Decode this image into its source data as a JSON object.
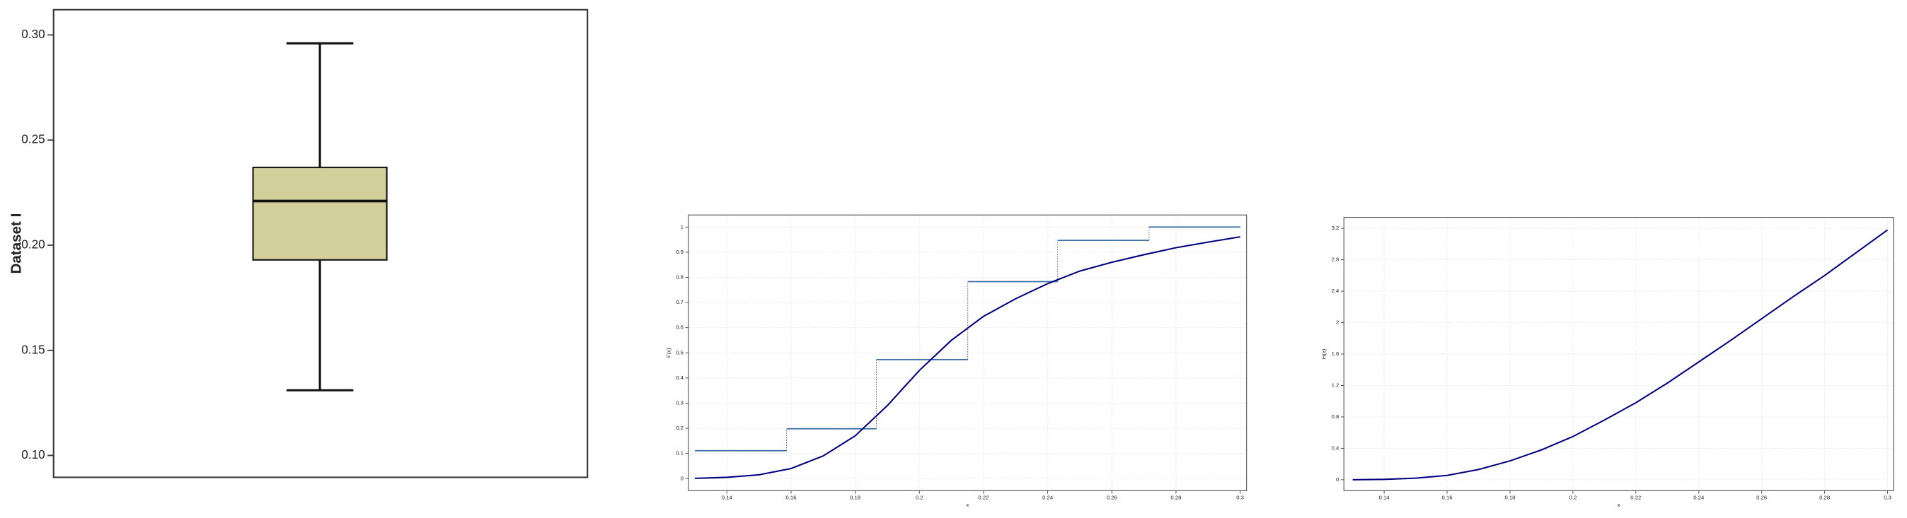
{
  "chart_data": [
    {
      "type": "box",
      "ylabel": "Dataset I",
      "color": "#d2cf9b",
      "whisker_low": 0.131,
      "q1": 0.193,
      "median": 0.221,
      "q3": 0.237,
      "whisker_high": 0.296,
      "ylim": [
        0.0896,
        0.312
      ],
      "yticks": [
        {
          "value": 0.1,
          "label": "0.10"
        },
        {
          "value": 0.15,
          "label": "0.15"
        },
        {
          "value": 0.2,
          "label": "0.20"
        },
        {
          "value": 0.25,
          "label": "0.25"
        },
        {
          "value": 0.3,
          "label": "0.30"
        }
      ]
    },
    {
      "type": "ecdf",
      "xlabel": "x",
      "ylabel": "F(x)",
      "grid": true,
      "step": {
        "color": "#3a6ea5",
        "x0": [
          0.13,
          0.1586,
          0.1866,
          0.2151,
          0.2431,
          0.2716
        ],
        "x1": [
          0.1586,
          0.1866,
          0.2151,
          0.2431,
          0.2716,
          0.3
        ],
        "values": [
          0.111,
          0.198,
          0.473,
          0.783,
          0.947,
          1
        ]
      },
      "curve": {
        "color": "#000080",
        "x": [
          0.13,
          0.14,
          0.15,
          0.16,
          0.17,
          0.18,
          0.19,
          0.2,
          0.21,
          0.22,
          0.23,
          0.24,
          0.25,
          0.26,
          0.27,
          0.28,
          0.29,
          0.3
        ],
        "values": [
          0.001,
          0.005,
          0.015,
          0.04,
          0.09,
          0.17,
          0.29,
          0.43,
          0.55,
          0.645,
          0.715,
          0.775,
          0.825,
          0.86,
          0.89,
          0.918,
          0.94,
          0.961
        ]
      },
      "xlim": [
        0.128,
        0.302
      ],
      "ylim": [
        -0.048,
        1.048
      ],
      "xticks": [
        0.14,
        0.16,
        0.18,
        {
          "value": 0.2,
          "label": "0.2"
        },
        0.22,
        0.24,
        0.26,
        0.28,
        {
          "value": 0.3,
          "label": "0.3"
        }
      ],
      "yticks": [
        0,
        0.1,
        0.2,
        0.3,
        0.4,
        0.5,
        0.6,
        0.7,
        0.8,
        0.9,
        1
      ]
    },
    {
      "type": "line",
      "xlabel": "x",
      "ylabel": "H(x)",
      "grid": true,
      "color": "#000080",
      "x": [
        0.13,
        0.14,
        0.15,
        0.16,
        0.17,
        0.18,
        0.19,
        0.2,
        0.21,
        0.22,
        0.23,
        0.24,
        0.25,
        0.26,
        0.27,
        0.28,
        0.29,
        0.3
      ],
      "values": [
        0.0,
        0.005,
        0.02,
        0.055,
        0.13,
        0.24,
        0.38,
        0.55,
        0.76,
        0.98,
        1.23,
        1.5,
        1.77,
        2.05,
        2.33,
        2.6,
        2.89,
        3.18
      ],
      "xlim": [
        0.1272,
        0.3019
      ],
      "ylim": [
        -0.139,
        3.339
      ],
      "xticks": [
        0.14,
        0.16,
        0.18,
        {
          "value": 0.2,
          "label": "0.2"
        },
        0.22,
        0.24,
        0.26,
        0.28,
        {
          "value": 0.3,
          "label": "0.3"
        }
      ],
      "yticks": [
        0,
        0.4,
        0.8,
        1.2,
        1.6,
        2,
        2.4,
        2.8,
        3.2
      ]
    }
  ]
}
